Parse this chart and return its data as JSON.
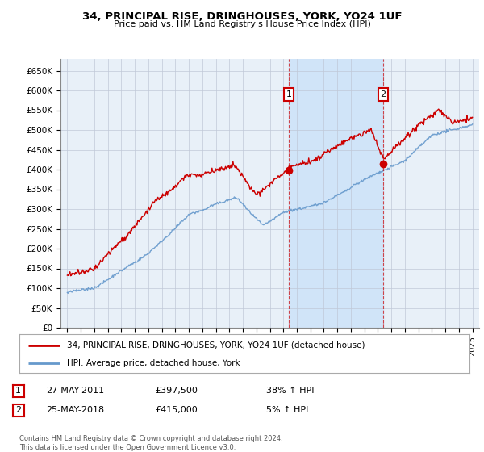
{
  "title": "34, PRINCIPAL RISE, DRINGHOUSES, YORK, YO24 1UF",
  "subtitle": "Price paid vs. HM Land Registry's House Price Index (HPI)",
  "legend_line1": "34, PRINCIPAL RISE, DRINGHOUSES, YORK, YO24 1UF (detached house)",
  "legend_line2": "HPI: Average price, detached house, York",
  "annotation1": {
    "label": "1",
    "date": "27-MAY-2011",
    "price": "£397,500",
    "pct": "38% ↑ HPI",
    "x_year": 2011.4
  },
  "annotation2": {
    "label": "2",
    "date": "25-MAY-2018",
    "price": "£415,000",
    "pct": "5% ↑ HPI",
    "x_year": 2018.4
  },
  "footer": "Contains HM Land Registry data © Crown copyright and database right 2024.\nThis data is licensed under the Open Government Licence v3.0.",
  "ylim": [
    0,
    680000
  ],
  "yticks": [
    0,
    50000,
    100000,
    150000,
    200000,
    250000,
    300000,
    350000,
    400000,
    450000,
    500000,
    550000,
    600000,
    650000
  ],
  "ytick_labels": [
    "£0",
    "£50K",
    "£100K",
    "£150K",
    "£200K",
    "£250K",
    "£300K",
    "£350K",
    "£400K",
    "£450K",
    "£500K",
    "£550K",
    "£600K",
    "£650K"
  ],
  "xlim_start": 1994.5,
  "xlim_end": 2025.5,
  "xticks": [
    1995,
    1996,
    1997,
    1998,
    1999,
    2000,
    2001,
    2002,
    2003,
    2004,
    2005,
    2006,
    2007,
    2008,
    2009,
    2010,
    2011,
    2012,
    2013,
    2014,
    2015,
    2016,
    2017,
    2018,
    2019,
    2020,
    2021,
    2022,
    2023,
    2024,
    2025
  ],
  "red_color": "#cc0000",
  "blue_color": "#6699cc",
  "blue_fill": "#ddeeff",
  "vline_color": "#cc0000",
  "background_color": "#e8f0f8",
  "plot_bg": "#ffffff",
  "grid_color": "#c0c8d8",
  "span_color": "#d0e4f8"
}
